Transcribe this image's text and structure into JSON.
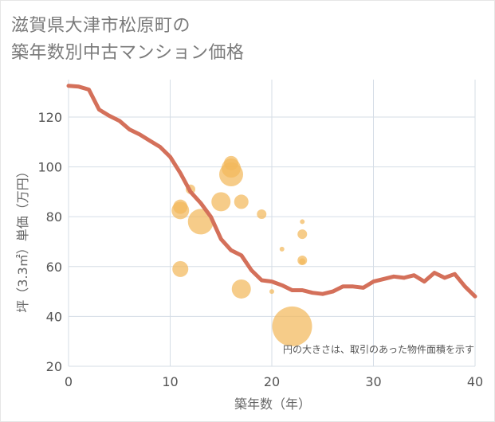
{
  "title_lines": [
    "滋賀県大津市松原町の",
    "築年数別中古マンション価格"
  ],
  "chart_data": {
    "type": "scatter",
    "xlabel": "築年数（年）",
    "ylabel": "坪（3.3㎡）単価（万円）",
    "xlim": [
      0,
      40
    ],
    "ylim": [
      20,
      135
    ],
    "xticks": [
      0,
      10,
      20,
      30,
      40
    ],
    "yticks": [
      20,
      40,
      60,
      80,
      100,
      120
    ],
    "grid": true,
    "note": "円の大きさは、取引のあった物件面積を示す",
    "colors": {
      "line": "#d4705a",
      "bubble": "#f2b85c",
      "grid": "#d5dde6"
    },
    "line": {
      "x": [
        0,
        1,
        2,
        3,
        4,
        5,
        6,
        7,
        8,
        9,
        10,
        11,
        12,
        13,
        14,
        15,
        16,
        17,
        18,
        19,
        20,
        21,
        22,
        23,
        24,
        25,
        26,
        27,
        28,
        29,
        30,
        31,
        32,
        33,
        34,
        35,
        36,
        37,
        38,
        39,
        40
      ],
      "y": [
        132.5,
        132.2,
        131,
        123,
        120.5,
        118.5,
        115,
        113,
        110.5,
        108,
        104,
        97.5,
        90,
        85.5,
        80,
        71,
        66.5,
        64.5,
        58.5,
        54.5,
        54,
        52.5,
        50.5,
        50.5,
        49.5,
        49,
        50,
        52,
        52,
        51.5,
        54,
        55,
        56,
        55.5,
        56.5,
        54,
        57.5,
        55.5,
        57,
        52,
        48
      ]
    },
    "bubbles": [
      {
        "x": 11,
        "y": 84,
        "size": 9
      },
      {
        "x": 11,
        "y": 82.5,
        "size": 11
      },
      {
        "x": 11,
        "y": 59,
        "size": 10
      },
      {
        "x": 12,
        "y": 91,
        "size": 6
      },
      {
        "x": 13,
        "y": 78,
        "size": 16
      },
      {
        "x": 15,
        "y": 86,
        "size": 12
      },
      {
        "x": 16,
        "y": 101.5,
        "size": 9
      },
      {
        "x": 16,
        "y": 99.5,
        "size": 12
      },
      {
        "x": 16,
        "y": 97,
        "size": 15
      },
      {
        "x": 17,
        "y": 86,
        "size": 9
      },
      {
        "x": 17,
        "y": 51,
        "size": 12
      },
      {
        "x": 19,
        "y": 81,
        "size": 6
      },
      {
        "x": 20,
        "y": 50,
        "size": 3
      },
      {
        "x": 21,
        "y": 67,
        "size": 3
      },
      {
        "x": 22,
        "y": 36,
        "size": 25
      },
      {
        "x": 23,
        "y": 78,
        "size": 3
      },
      {
        "x": 23,
        "y": 73,
        "size": 6
      },
      {
        "x": 23,
        "y": 62.5,
        "size": 6
      },
      {
        "x": 23,
        "y": 62,
        "size": 4
      }
    ]
  }
}
